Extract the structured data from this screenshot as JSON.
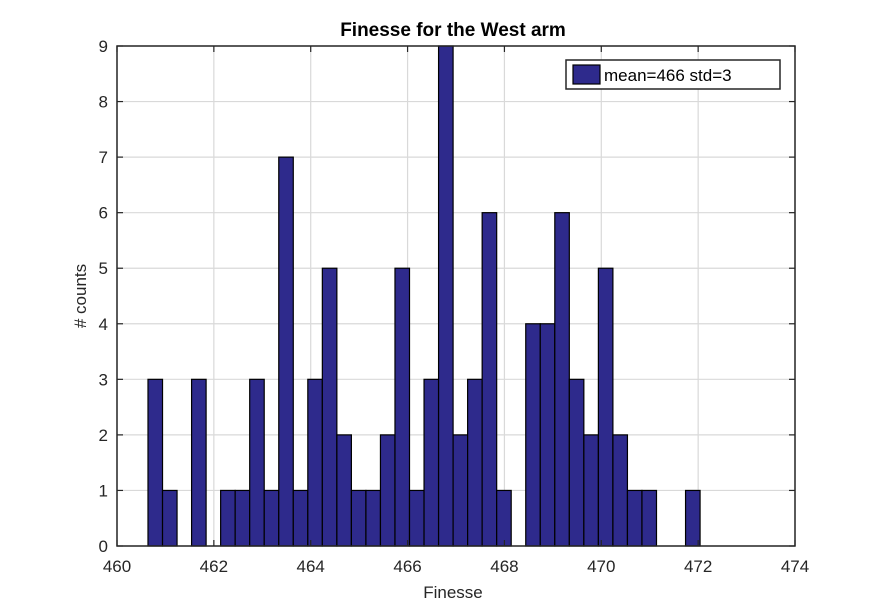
{
  "chart_data": {
    "type": "bar",
    "title": "Finesse for the West arm",
    "xlabel": "Finesse",
    "ylabel": "# counts",
    "xlim": [
      460,
      474
    ],
    "ylim": [
      0,
      9
    ],
    "xticks": [
      "460",
      "462",
      "464",
      "466",
      "468",
      "470",
      "472",
      "474"
    ],
    "yticks": [
      "0",
      "1",
      "2",
      "3",
      "4",
      "5",
      "6",
      "7",
      "8",
      "9"
    ],
    "grid": true,
    "legend_position": "top-right",
    "bar_color": "#2e2a8c",
    "bin_width": 0.3,
    "series": [
      {
        "name": "mean=466 std=3",
        "bin_centers": [
          460.79,
          461.09,
          461.39,
          461.69,
          461.99,
          462.29,
          462.59,
          462.89,
          463.19,
          463.49,
          463.79,
          464.09,
          464.39,
          464.69,
          464.99,
          465.29,
          465.59,
          465.89,
          466.19,
          466.49,
          466.79,
          467.09,
          467.39,
          467.69,
          467.99,
          468.29,
          468.59,
          468.89,
          469.19,
          469.49,
          469.79,
          470.09,
          470.39,
          470.69,
          470.99,
          471.29,
          471.59,
          471.89,
          472.19
        ],
        "values": [
          3,
          1,
          0,
          3,
          0,
          1,
          1,
          3,
          1,
          7,
          1,
          3,
          5,
          2,
          1,
          1,
          2,
          5,
          1,
          3,
          9,
          2,
          3,
          6,
          1,
          0,
          4,
          4,
          6,
          3,
          2,
          5,
          2,
          1,
          1,
          0,
          0,
          1,
          0
        ]
      }
    ]
  }
}
